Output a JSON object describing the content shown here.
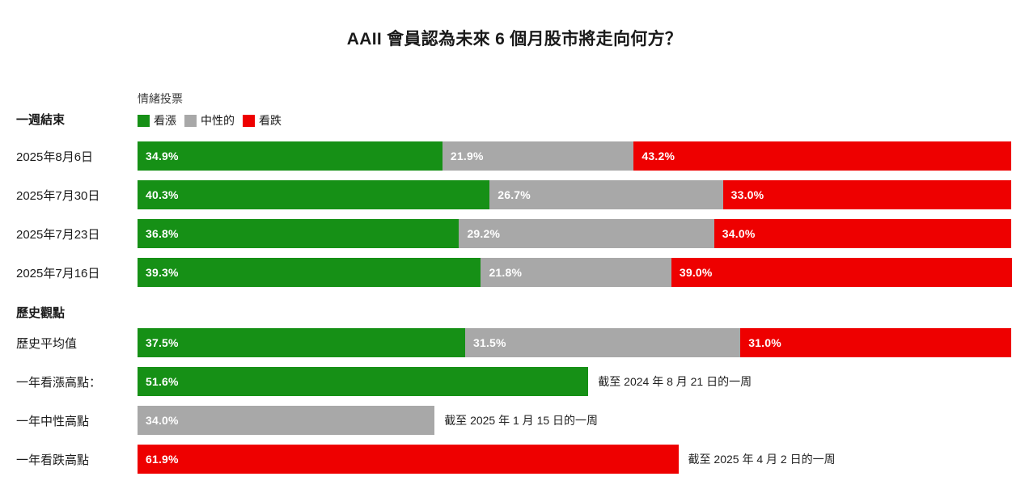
{
  "title": "AAII 會員認為未來 6 個月股市將走向何方？",
  "legend": {
    "title": "情緒投票",
    "items": [
      {
        "key": "bullish",
        "label": "看漲",
        "color": "#169016"
      },
      {
        "key": "neutral",
        "label": "中性的",
        "color": "#a8a8a8"
      },
      {
        "key": "bearish",
        "label": "看跌",
        "color": "#ee0000"
      }
    ]
  },
  "chart_data": {
    "type": "bar",
    "orientation": "horizontal",
    "stacked": true,
    "unit": "%",
    "xlim": [
      0,
      100
    ],
    "grid": false,
    "legend_position": "top",
    "title": "AAII 會員認為未來 6 個月股市將走向何方？",
    "series": [
      "看漲",
      "中性的",
      "看跌"
    ],
    "sections": [
      {
        "heading": "一週結束",
        "rows": [
          {
            "label": "2025年8月6日",
            "values": [
              34.9,
              21.9,
              43.2
            ]
          },
          {
            "label": "2025年7月30日",
            "values": [
              40.3,
              26.7,
              33.0
            ]
          },
          {
            "label": "2025年7月23日",
            "values": [
              36.8,
              29.2,
              34.0
            ]
          },
          {
            "label": "2025年7月16日",
            "values": [
              39.3,
              21.8,
              39.0
            ]
          }
        ]
      },
      {
        "heading": "歷史觀點",
        "rows": [
          {
            "label": "歷史平均值",
            "values": [
              37.5,
              31.5,
              31.0
            ]
          },
          {
            "label": "一年看漲高點：",
            "values": [
              51.6,
              null,
              null
            ],
            "note": "截至 2024 年 8 月 21 日的一周"
          },
          {
            "label": "一年中性高點",
            "values": [
              null,
              34.0,
              null
            ],
            "note": "截至 2025 年 1 月 15 日的一周"
          },
          {
            "label": "一年看跌高點",
            "values": [
              null,
              null,
              61.9
            ],
            "note": "截至 2025 年 4 月 2 日的一周"
          }
        ]
      }
    ]
  }
}
